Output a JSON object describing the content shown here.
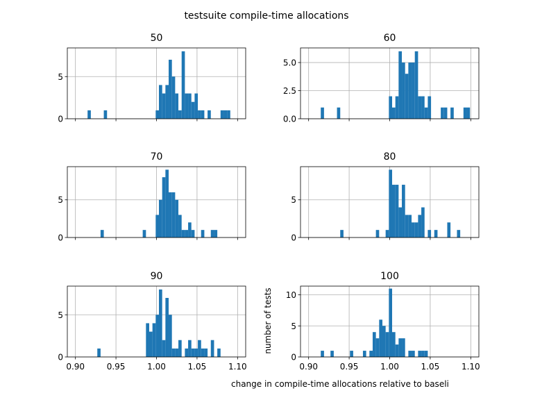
{
  "figure": {
    "suptitle": "testsuite compile-time allocations",
    "xlabel": "change in compile-time allocations relative to baseli",
    "ylabel": "number of tests"
  },
  "colors": {
    "bar": "#1f77b4",
    "grid": "#b0b0b0",
    "axis": "#000000"
  },
  "chart_data": [
    {
      "type": "bar",
      "title": "50",
      "xlim": [
        0.89,
        1.11
      ],
      "ylim": [
        0,
        8.4
      ],
      "xticks": [],
      "yticks": [
        0,
        5
      ],
      "bars": [
        [
          0.917,
          1
        ],
        [
          0.937,
          1
        ],
        [
          1.001,
          1
        ],
        [
          1.005,
          4
        ],
        [
          1.009,
          3
        ],
        [
          1.013,
          4
        ],
        [
          1.017,
          7
        ],
        [
          1.021,
          5
        ],
        [
          1.025,
          3
        ],
        [
          1.029,
          1
        ],
        [
          1.033,
          8
        ],
        [
          1.037,
          3
        ],
        [
          1.041,
          3
        ],
        [
          1.045,
          2
        ],
        [
          1.049,
          3
        ],
        [
          1.053,
          1
        ],
        [
          1.057,
          1
        ],
        [
          1.065,
          1
        ],
        [
          1.081,
          1
        ],
        [
          1.085,
          1
        ],
        [
          1.089,
          1
        ]
      ]
    },
    {
      "type": "bar",
      "title": "60",
      "xlim": [
        0.89,
        1.11
      ],
      "ylim": [
        0,
        6.3
      ],
      "xticks": [],
      "yticks": [
        0.0,
        2.5,
        5.0
      ],
      "bars": [
        [
          0.917,
          1
        ],
        [
          0.937,
          1
        ],
        [
          1.001,
          2
        ],
        [
          1.005,
          1
        ],
        [
          1.009,
          2
        ],
        [
          1.013,
          6
        ],
        [
          1.017,
          5
        ],
        [
          1.021,
          4
        ],
        [
          1.025,
          5
        ],
        [
          1.029,
          5
        ],
        [
          1.033,
          6
        ],
        [
          1.037,
          2
        ],
        [
          1.041,
          2
        ],
        [
          1.045,
          1
        ],
        [
          1.049,
          2
        ],
        [
          1.065,
          1
        ],
        [
          1.069,
          1
        ],
        [
          1.077,
          1
        ],
        [
          1.093,
          1
        ],
        [
          1.097,
          1
        ]
      ]
    },
    {
      "type": "bar",
      "title": "70",
      "xlim": [
        0.89,
        1.11
      ],
      "ylim": [
        0,
        9.4
      ],
      "xticks": [],
      "yticks": [
        0,
        5
      ],
      "bars": [
        [
          0.933,
          1
        ],
        [
          0.985,
          1
        ],
        [
          1.001,
          3
        ],
        [
          1.005,
          5
        ],
        [
          1.009,
          8
        ],
        [
          1.013,
          9
        ],
        [
          1.017,
          6
        ],
        [
          1.021,
          6
        ],
        [
          1.025,
          5
        ],
        [
          1.029,
          3
        ],
        [
          1.033,
          1
        ],
        [
          1.037,
          1
        ],
        [
          1.041,
          2
        ],
        [
          1.045,
          1
        ],
        [
          1.057,
          1
        ],
        [
          1.069,
          1
        ],
        [
          1.073,
          1
        ]
      ]
    },
    {
      "type": "bar",
      "title": "80",
      "xlim": [
        0.89,
        1.11
      ],
      "ylim": [
        0,
        9.4
      ],
      "xticks": [],
      "yticks": [
        0,
        5
      ],
      "bars": [
        [
          0.941,
          1
        ],
        [
          0.985,
          1
        ],
        [
          0.997,
          1
        ],
        [
          1.001,
          9
        ],
        [
          1.005,
          7
        ],
        [
          1.009,
          7
        ],
        [
          1.013,
          4
        ],
        [
          1.017,
          7
        ],
        [
          1.021,
          3
        ],
        [
          1.025,
          3
        ],
        [
          1.029,
          2
        ],
        [
          1.033,
          2
        ],
        [
          1.037,
          3
        ],
        [
          1.041,
          4
        ],
        [
          1.049,
          1
        ],
        [
          1.057,
          1
        ],
        [
          1.073,
          2
        ],
        [
          1.085,
          1
        ]
      ]
    },
    {
      "type": "bar",
      "title": "90",
      "xlim": [
        0.89,
        1.11
      ],
      "ylim": [
        0,
        8.4
      ],
      "xticks": [
        "0.90",
        "0.95",
        "1.00",
        "1.05",
        "1.10"
      ],
      "yticks": [
        0,
        5
      ],
      "bars": [
        [
          0.929,
          1
        ],
        [
          0.989,
          4
        ],
        [
          0.993,
          3
        ],
        [
          0.997,
          4
        ],
        [
          1.001,
          5
        ],
        [
          1.005,
          8
        ],
        [
          1.009,
          2
        ],
        [
          1.013,
          7
        ],
        [
          1.017,
          5
        ],
        [
          1.021,
          1
        ],
        [
          1.025,
          1
        ],
        [
          1.029,
          2
        ],
        [
          1.037,
          1
        ],
        [
          1.041,
          2
        ],
        [
          1.045,
          1
        ],
        [
          1.049,
          1
        ],
        [
          1.053,
          2
        ],
        [
          1.057,
          1
        ],
        [
          1.061,
          1
        ],
        [
          1.069,
          2
        ],
        [
          1.077,
          1
        ]
      ]
    },
    {
      "type": "bar",
      "title": "100",
      "xlim": [
        0.89,
        1.11
      ],
      "ylim": [
        0,
        11.4
      ],
      "xticks": [
        "0.90",
        "0.95",
        "1.00",
        "1.05",
        "1.10"
      ],
      "yticks": [
        0,
        5,
        10
      ],
      "bars": [
        [
          0.917,
          1
        ],
        [
          0.929,
          1
        ],
        [
          0.953,
          1
        ],
        [
          0.969,
          1
        ],
        [
          0.977,
          1
        ],
        [
          0.981,
          4
        ],
        [
          0.985,
          3
        ],
        [
          0.989,
          6
        ],
        [
          0.993,
          5
        ],
        [
          0.997,
          4
        ],
        [
          1.001,
          11
        ],
        [
          1.005,
          4
        ],
        [
          1.009,
          2
        ],
        [
          1.013,
          3
        ],
        [
          1.017,
          3
        ],
        [
          1.025,
          1
        ],
        [
          1.029,
          1
        ],
        [
          1.037,
          1
        ],
        [
          1.041,
          1
        ],
        [
          1.045,
          1
        ]
      ]
    }
  ]
}
